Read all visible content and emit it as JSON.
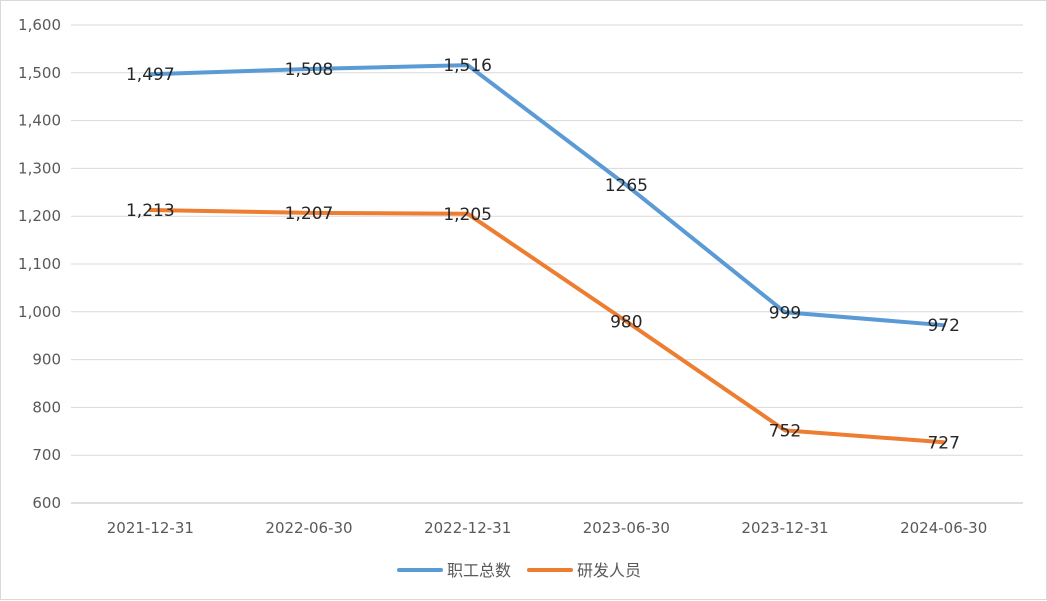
{
  "chart_data": {
    "type": "line",
    "title": "",
    "xlabel": "",
    "ylabel": "",
    "categories": [
      "2021-12-31",
      "2022-06-30",
      "2022-12-31",
      "2023-06-30",
      "2023-12-31",
      "2024-06-30"
    ],
    "ylim": [
      600,
      1600
    ],
    "yticks": [
      600,
      700,
      800,
      900,
      1000,
      1100,
      1200,
      1300,
      1400,
      1500,
      1600
    ],
    "ytick_labels": [
      "600",
      "700",
      "800",
      "900",
      "1,000",
      "1,100",
      "1,200",
      "1,300",
      "1,400",
      "1,500",
      "1,600"
    ],
    "grid": true,
    "legend_position": "bottom",
    "series": [
      {
        "name": "职工总数",
        "color": "#5b9bd5",
        "values": [
          1497,
          1508,
          1516,
          1265,
          999,
          972
        ],
        "labels": [
          "1,497",
          "1,508",
          "1,516",
          "1265",
          "999",
          "972"
        ]
      },
      {
        "name": "研发人员",
        "color": "#ed7d31",
        "values": [
          1213,
          1207,
          1205,
          980,
          752,
          727
        ],
        "labels": [
          "1,213",
          "1,207",
          "1,205",
          "980",
          "752",
          "727"
        ]
      }
    ]
  }
}
